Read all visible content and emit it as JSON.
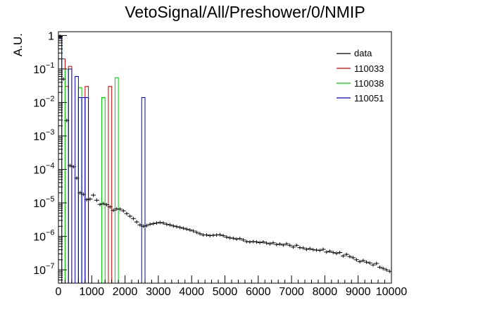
{
  "chart_data": {
    "type": "histogram",
    "title": "VetoSignal/All/Preshower/0/NMIP",
    "xlabel": "",
    "ylabel": "A.U.",
    "x_scale": "linear",
    "y_scale": "log",
    "xlim": [
      0,
      10000
    ],
    "ylim": [
      4e-08,
      1.3
    ],
    "x_ticks": [
      {
        "value": 0,
        "label": "0"
      },
      {
        "value": 1000,
        "label": "1000"
      },
      {
        "value": 2000,
        "label": "2000"
      },
      {
        "value": 3000,
        "label": "3000"
      },
      {
        "value": 4000,
        "label": "4000"
      },
      {
        "value": 5000,
        "label": "5000"
      },
      {
        "value": 6000,
        "label": "6000"
      },
      {
        "value": 7000,
        "label": "7000"
      },
      {
        "value": 8000,
        "label": "8000"
      },
      {
        "value": 9000,
        "label": "9000"
      },
      {
        "value": 10000,
        "label": "10000"
      }
    ],
    "y_ticks": [
      {
        "value": 1,
        "base": "1",
        "exp": ""
      },
      {
        "value": 0.1,
        "base": "10",
        "exp": "−1"
      },
      {
        "value": 0.01,
        "base": "10",
        "exp": "−2"
      },
      {
        "value": 0.001,
        "base": "10",
        "exp": "−3"
      },
      {
        "value": 0.0001,
        "base": "10",
        "exp": "−4"
      },
      {
        "value": 1e-05,
        "base": "10",
        "exp": "−5"
      },
      {
        "value": 1e-06,
        "base": "10",
        "exp": "−6"
      },
      {
        "value": 1e-07,
        "base": "10",
        "exp": "−7"
      }
    ],
    "legend": {
      "position": "top-right",
      "entries": [
        {
          "label": "data",
          "color": "#000000"
        },
        {
          "label": "110033",
          "color": "#cc0000"
        },
        {
          "label": "110038",
          "color": "#00cc00"
        },
        {
          "label": "110051",
          "color": "#0000cc"
        }
      ]
    },
    "series": [
      {
        "name": "110033",
        "style": "hist",
        "color": "#cc0000",
        "bins": [
          [
            0,
            100,
            0.9
          ],
          [
            100,
            200,
            0.2
          ],
          [
            200,
            300,
            0.03
          ],
          [
            300,
            400,
            0.12
          ],
          [
            800,
            900,
            0.03
          ],
          [
            1500,
            1600,
            0.03
          ]
        ]
      },
      {
        "name": "110038",
        "style": "hist",
        "color": "#00cc00",
        "bins": [
          [
            0,
            100,
            0.7
          ],
          [
            200,
            300,
            0.1
          ],
          [
            600,
            700,
            0.028
          ],
          [
            1300,
            1400,
            0.014
          ],
          [
            1700,
            1800,
            0.055
          ]
        ]
      },
      {
        "name": "110051",
        "style": "hist",
        "color": "#0000cc",
        "bins": [
          [
            0,
            100,
            0.85
          ],
          [
            300,
            400,
            0.1
          ],
          [
            500,
            600,
            0.06
          ],
          [
            600,
            700,
            0.014
          ],
          [
            700,
            800,
            0.014
          ],
          [
            800,
            900,
            0.014
          ],
          [
            2500,
            2600,
            0.014
          ]
        ]
      },
      {
        "name": "data",
        "style": "points",
        "color": "#000000",
        "points": [
          [
            50,
            0.95
          ],
          [
            150,
            0.05
          ],
          [
            250,
            0.0029
          ],
          [
            350,
            0.00013
          ],
          [
            450,
            0.00012
          ],
          [
            550,
            5.5e-05
          ],
          [
            650,
            2e-05
          ],
          [
            750,
            1.8e-05
          ],
          [
            850,
            1.25e-05
          ],
          [
            950,
            1.3e-05
          ],
          [
            1050,
            1.7e-05
          ],
          [
            1150,
            1.2e-05
          ],
          [
            1250,
            9e-06
          ],
          [
            1350,
            9.5e-06
          ],
          [
            1450,
            8.8e-06
          ],
          [
            1550,
            7.6e-06
          ],
          [
            1650,
            6e-06
          ],
          [
            1750,
            6.6e-06
          ],
          [
            1850,
            6.5e-06
          ],
          [
            1950,
            5.8e-06
          ],
          [
            2050,
            4.8e-06
          ],
          [
            2150,
            4e-06
          ],
          [
            2250,
            3.4e-06
          ],
          [
            2350,
            2.7e-06
          ],
          [
            2450,
            2.2e-06
          ],
          [
            2550,
            2e-06
          ],
          [
            2650,
            2.1e-06
          ],
          [
            2750,
            2.3e-06
          ],
          [
            2850,
            2.4e-06
          ],
          [
            2950,
            2.5e-06
          ],
          [
            3050,
            2.6e-06
          ],
          [
            3150,
            2.5e-06
          ],
          [
            3250,
            2.3e-06
          ],
          [
            3350,
            2.2e-06
          ],
          [
            3450,
            2.05e-06
          ],
          [
            3550,
            1.95e-06
          ],
          [
            3650,
            1.85e-06
          ],
          [
            3750,
            1.75e-06
          ],
          [
            3850,
            1.65e-06
          ],
          [
            3950,
            1.55e-06
          ],
          [
            4050,
            1.45e-06
          ],
          [
            4150,
            1.32e-06
          ],
          [
            4250,
            1.2e-06
          ],
          [
            4350,
            1.1e-06
          ],
          [
            4450,
            1.1e-06
          ],
          [
            4550,
            1.05e-06
          ],
          [
            4650,
            1.08e-06
          ],
          [
            4750,
            1.1e-06
          ],
          [
            4850,
            1.12e-06
          ],
          [
            4950,
            1.05e-06
          ],
          [
            5050,
            9.5e-07
          ],
          [
            5150,
            9e-07
          ],
          [
            5250,
            8.8e-07
          ],
          [
            5350,
            8.3e-07
          ],
          [
            5450,
            8.6e-07
          ],
          [
            5550,
            7.8e-07
          ],
          [
            5650,
            7e-07
          ],
          [
            5750,
            6.8e-07
          ],
          [
            5850,
            7e-07
          ],
          [
            5950,
            6.8e-07
          ],
          [
            6050,
            6.5e-07
          ],
          [
            6150,
            6.8e-07
          ],
          [
            6250,
            6.3e-07
          ],
          [
            6350,
            6e-07
          ],
          [
            6450,
            6.4e-07
          ],
          [
            6550,
            5.7e-07
          ],
          [
            6650,
            5.9e-07
          ],
          [
            6750,
            5.5e-07
          ],
          [
            6850,
            6e-07
          ],
          [
            6950,
            5.4e-07
          ],
          [
            7050,
            4.8e-07
          ],
          [
            7150,
            5.4e-07
          ],
          [
            7250,
            4.6e-07
          ],
          [
            7350,
            4.5e-07
          ],
          [
            7450,
            4.1e-07
          ],
          [
            7550,
            4.3e-07
          ],
          [
            7650,
            4e-07
          ],
          [
            7750,
            3.9e-07
          ],
          [
            7850,
            3.8e-07
          ],
          [
            7950,
            4.1e-07
          ],
          [
            8050,
            3.4e-07
          ],
          [
            8150,
            3.6e-07
          ],
          [
            8250,
            3.3e-07
          ],
          [
            8350,
            3.1e-07
          ],
          [
            8450,
            3.3e-07
          ],
          [
            8550,
            2.6e-07
          ],
          [
            8650,
            2.9e-07
          ],
          [
            8750,
            2.5e-07
          ],
          [
            8850,
            2.3e-07
          ],
          [
            8950,
            2e-07
          ],
          [
            9050,
            1.75e-07
          ],
          [
            9150,
            1.9e-07
          ],
          [
            9250,
            1.7e-07
          ],
          [
            9350,
            1.6e-07
          ],
          [
            9450,
            1.4e-07
          ],
          [
            9550,
            1.55e-07
          ],
          [
            9650,
            1.2e-07
          ],
          [
            9750,
            1.1e-07
          ],
          [
            9850,
            1e-07
          ],
          [
            9950,
            9e-08
          ]
        ]
      }
    ]
  }
}
